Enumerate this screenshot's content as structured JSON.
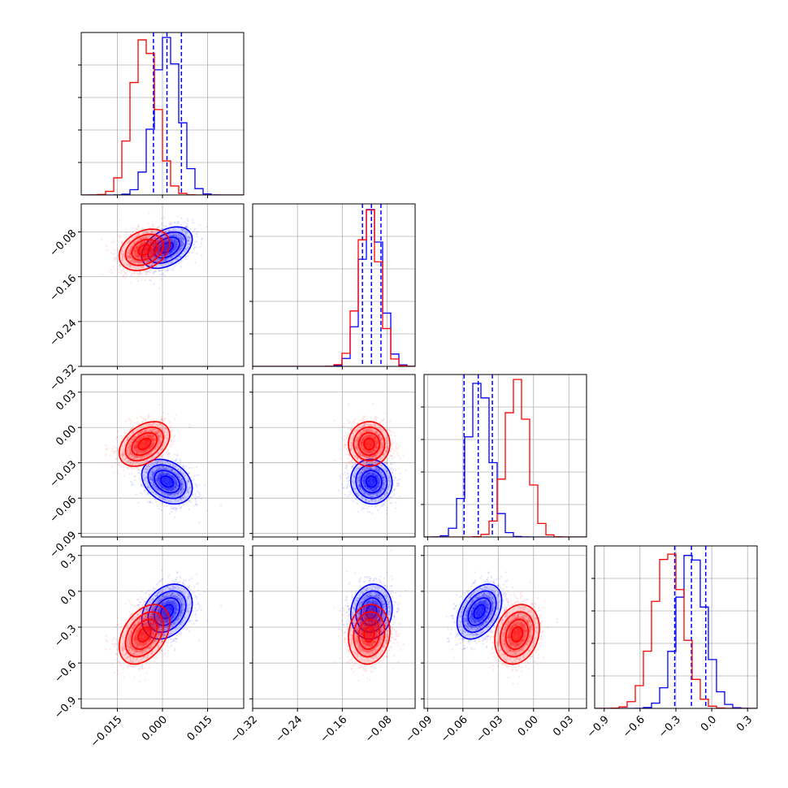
{
  "chart_data": {
    "type": "corner",
    "parameters": [
      {
        "lim": [
          -0.027,
          0.027
        ],
        "ticks": [
          -0.015,
          0.0,
          0.015
        ],
        "tick_labels": [
          "−0.015",
          "0.000",
          "0.015"
        ]
      },
      {
        "lim": [
          -0.32,
          -0.03
        ],
        "ticks": [
          -0.32,
          -0.24,
          -0.16,
          -0.08
        ],
        "tick_labels": [
          "−0.32",
          "−0.24",
          "−0.16",
          "−0.08"
        ]
      },
      {
        "lim": [
          -0.093,
          0.045
        ],
        "ticks": [
          -0.09,
          -0.06,
          -0.03,
          0.0,
          0.03
        ],
        "tick_labels": [
          "−0.09",
          "−0.06",
          "−0.03",
          "0.00",
          "0.03"
        ]
      },
      {
        "lim": [
          -0.98,
          0.38
        ],
        "ticks": [
          -0.9,
          -0.6,
          -0.3,
          0.0,
          0.3
        ],
        "tick_labels": [
          "−0.9",
          "−0.6",
          "−0.3",
          "0.0",
          "0.3"
        ]
      }
    ],
    "series": [
      {
        "color": "#0000ff",
        "mean": [
          0.0015,
          -0.108,
          -0.046,
          -0.17
        ],
        "std": [
          0.0042,
          0.0185,
          0.0095,
          0.115
        ],
        "corr": [
          [
            1,
            0.4,
            -0.3,
            0.3
          ],
          [
            0.4,
            1,
            -0.05,
            0.1
          ],
          [
            -0.3,
            -0.05,
            1,
            0.4
          ],
          [
            0.3,
            0.1,
            0.4,
            1
          ]
        ],
        "quantiles": [
          [
            -0.003,
            0.0015,
            0.0063
          ],
          [
            -0.124,
            -0.108,
            -0.091
          ],
          [
            -0.059,
            -0.047,
            -0.035
          ],
          [
            -0.31,
            -0.17,
            -0.05
          ]
        ]
      },
      {
        "color": "#ff0000",
        "mean": [
          -0.006,
          -0.112,
          -0.014,
          -0.36
        ],
        "std": [
          0.0042,
          0.0185,
          0.0095,
          0.125
        ],
        "corr": [
          [
            1,
            0.3,
            0.4,
            0.4
          ],
          [
            0.3,
            1,
            0.0,
            0.1
          ],
          [
            0.4,
            0.0,
            1,
            0.2
          ],
          [
            0.4,
            0.1,
            0.2,
            1
          ]
        ],
        "quantiles": []
      }
    ],
    "grid": true
  }
}
